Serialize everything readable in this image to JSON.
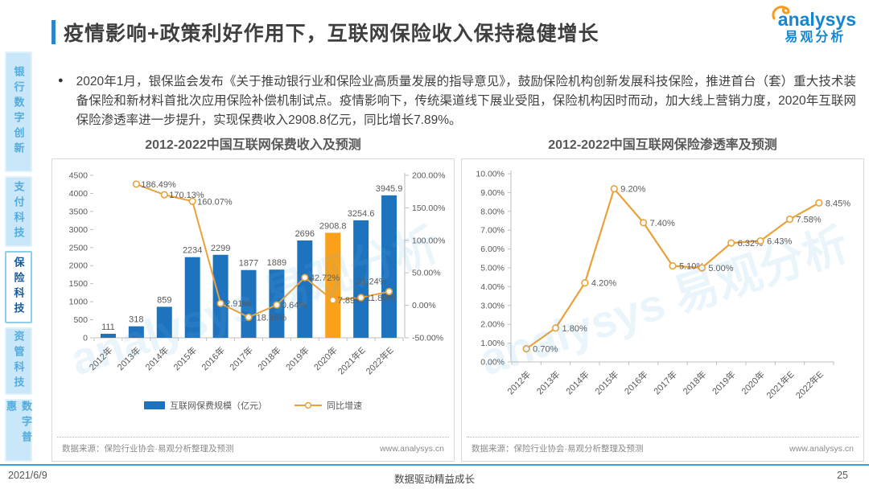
{
  "header": {
    "title": "疫情影响+政策利好作用下，互联网保险收入保持稳健增长",
    "logo_word": "analysys",
    "logo_cn": "易观分析"
  },
  "sidebar": {
    "items": [
      {
        "label": "银行数字创新",
        "active": false
      },
      {
        "label": "支付科技",
        "active": false
      },
      {
        "label": "保险科技",
        "active": true
      },
      {
        "label": "资管科技",
        "active": false
      },
      {
        "label": "数字普惠",
        "active": false
      }
    ]
  },
  "bullet": {
    "text": "2020年1月，银保监会发布《关于推动银行业和保险业高质量发展的指导意见》，鼓励保险机构创新发展科技保险，推进首台（套）重大技术装备保险和新材料首批次应用保险补偿机制试点。疫情影响下，传统渠道线下展业受阻，保险机构因时而动，加大线上营销力度，2020年互联网保险渗透率进一步提升，实现保费收入2908.8亿元，同比增长7.89%。"
  },
  "watermark": "analysys 易观分析",
  "chart_data": [
    {
      "type": "bar",
      "title": "2012-2022中国互联网保费收入及预测",
      "categories": [
        "2012年",
        "2013年",
        "2014年",
        "2015年",
        "2016年",
        "2017年",
        "2018年",
        "2019年",
        "2020年",
        "2021年E",
        "2022年E"
      ],
      "series": [
        {
          "name": "互联网保费规模（亿元）",
          "type": "bar",
          "values": [
            111,
            318,
            859,
            2234,
            2299,
            1877,
            1889,
            2696,
            2908.8,
            3254.6,
            3945.9
          ],
          "labels": [
            "111",
            "318",
            "859",
            "2234",
            "2299",
            "1877",
            "1889",
            "2696",
            "2908.8",
            "3254.6",
            "3945.9"
          ],
          "highlight_index": 8
        },
        {
          "name": "同比增速",
          "type": "line",
          "axis": "right",
          "values": [
            null,
            186.49,
            170.13,
            160.07,
            2.91,
            -18.36,
            0.64,
            42.72,
            7.89,
            11.89,
            21.24
          ],
          "labels": [
            null,
            "186.49%",
            "170.13%",
            "160.07%",
            "2.91%",
            "-18.36%",
            "0.64%",
            "42.72%",
            "7.89%",
            "11.89%",
            "21.24%"
          ]
        }
      ],
      "ylim_left": [
        0,
        4500
      ],
      "ytick_step_left": 500,
      "ylim_right": [
        -50,
        200
      ],
      "ytick_step_right": 50,
      "grid": false,
      "legend_position": "bottom",
      "source": "数据来源：保险行业协会·易观分析整理及预测",
      "website": "www.analysys.cn"
    },
    {
      "type": "line",
      "title": "2012-2022中国互联网保险渗透率及预测",
      "categories": [
        "2012年",
        "2013年",
        "2014年",
        "2015年",
        "2016年",
        "2017年",
        "2018年",
        "2019年",
        "2020年",
        "2021年E",
        "2022年E"
      ],
      "values": [
        0.7,
        1.8,
        4.2,
        9.2,
        7.4,
        5.1,
        5.0,
        6.32,
        6.43,
        7.58,
        8.45
      ],
      "labels": [
        "0.70%",
        "1.80%",
        "4.20%",
        "9.20%",
        "7.40%",
        "5.10%",
        "5.00%",
        "6.32%",
        "6.43%",
        "7.58%",
        "8.45%"
      ],
      "ylim": [
        0,
        10
      ],
      "ytick_step": 1,
      "grid": false,
      "source": "数据来源：保险行业协会·易观分析整理及预测",
      "website": "www.analysys.cn"
    }
  ],
  "colors": {
    "accent_blue": "#2E86C8",
    "bar_blue": "#1E73BE",
    "highlight_orange": "#F9A11B",
    "line_orange": "#E9A23B",
    "axis_text": "#595959",
    "axis_line": "#BFBFBF"
  },
  "footer": {
    "date": "2021/6/9",
    "center": "数据驱动精益成长",
    "page": "25"
  }
}
